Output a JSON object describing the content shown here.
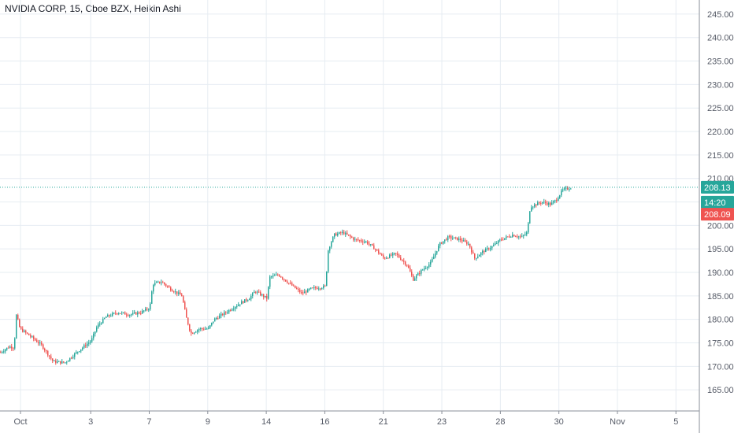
{
  "title": "NVIDIA CORP, 15, Cboe BZX, Heikin Ashi",
  "colors": {
    "up": "#26a69a",
    "down": "#ef5350",
    "grid": "#e6ecf2",
    "axis": "#8a8f99",
    "last_line": "#26a69a"
  },
  "price_badges": {
    "last": "208.13",
    "countdown": "14:20",
    "prev": "208.09"
  },
  "chart_data": {
    "type": "candlestick",
    "title": "NVIDIA CORP, 15, Cboe BZX, Heikin Ashi",
    "y_ticks": [
      "165.00",
      "170.00",
      "175.00",
      "180.00",
      "185.00",
      "190.00",
      "195.00",
      "200.00",
      "205.00",
      "210.00",
      "215.00",
      "220.00",
      "225.00",
      "230.00",
      "235.00",
      "240.00",
      "245.00"
    ],
    "ylim": [
      160.5,
      248
    ],
    "x_ticks": [
      "Oct",
      "3",
      "7",
      "9",
      "14",
      "16",
      "21",
      "23",
      "28",
      "30",
      "Nov",
      "5"
    ],
    "x_tick_pos": [
      -0.2,
      1,
      2,
      3,
      4,
      5,
      6,
      7,
      8,
      9,
      10,
      11
    ],
    "xlim": [
      -0.55,
      11.4
    ],
    "last_price": 208.13,
    "countdown": "14:20",
    "prev_close": 208.09,
    "path": [
      [
        -0.55,
        173.0
      ],
      [
        -0.4,
        174.2
      ],
      [
        -0.32,
        174.0
      ],
      [
        -0.28,
        181.0
      ],
      [
        -0.22,
        178.0
      ],
      [
        -0.05,
        176.5
      ],
      [
        0.15,
        174.5
      ],
      [
        0.35,
        171.0
      ],
      [
        0.55,
        170.8
      ],
      [
        0.75,
        173.0
      ],
      [
        1.0,
        175.5
      ],
      [
        1.1,
        178.5
      ],
      [
        1.25,
        180.5
      ],
      [
        1.45,
        181.5
      ],
      [
        1.65,
        181.0
      ],
      [
        1.85,
        181.5
      ],
      [
        2.0,
        182.5
      ],
      [
        2.05,
        187.5
      ],
      [
        2.2,
        188.0
      ],
      [
        2.35,
        186.5
      ],
      [
        2.55,
        185.0
      ],
      [
        2.62,
        180.5
      ],
      [
        2.7,
        177.0
      ],
      [
        2.85,
        178.0
      ],
      [
        3.0,
        178.0
      ],
      [
        3.1,
        180.0
      ],
      [
        3.3,
        181.5
      ],
      [
        3.55,
        183.5
      ],
      [
        3.7,
        184.5
      ],
      [
        3.8,
        186.0
      ],
      [
        4.0,
        184.5
      ],
      [
        4.05,
        189.0
      ],
      [
        4.2,
        189.5
      ],
      [
        4.4,
        187.5
      ],
      [
        4.6,
        185.5
      ],
      [
        4.75,
        186.5
      ],
      [
        5.0,
        187.0
      ],
      [
        5.05,
        195.0
      ],
      [
        5.15,
        198.0
      ],
      [
        5.3,
        198.5
      ],
      [
        5.5,
        197.0
      ],
      [
        5.7,
        196.5
      ],
      [
        5.85,
        195.0
      ],
      [
        6.0,
        193.0
      ],
      [
        6.2,
        194.0
      ],
      [
        6.4,
        191.5
      ],
      [
        6.5,
        188.5
      ],
      [
        6.65,
        190.5
      ],
      [
        6.8,
        192.0
      ],
      [
        6.95,
        196.0
      ],
      [
        7.1,
        197.5
      ],
      [
        7.3,
        197.0
      ],
      [
        7.45,
        196.0
      ],
      [
        7.55,
        193.0
      ],
      [
        7.7,
        194.5
      ],
      [
        7.85,
        195.5
      ],
      [
        8.0,
        197.0
      ],
      [
        8.2,
        198.0
      ],
      [
        8.35,
        197.5
      ],
      [
        8.45,
        198.5
      ],
      [
        8.5,
        204.0
      ],
      [
        8.7,
        205.0
      ],
      [
        8.85,
        204.5
      ],
      [
        8.95,
        205.5
      ],
      [
        9.05,
        207.5
      ],
      [
        9.2,
        208.1
      ]
    ],
    "series": [
      {
        "name": "",
        "points": []
      }
    ]
  }
}
